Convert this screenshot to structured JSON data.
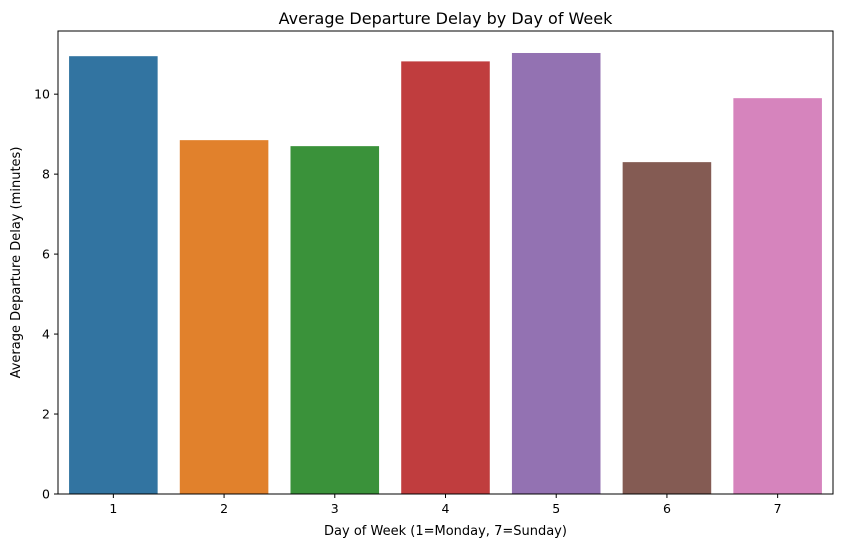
{
  "chart_data": {
    "type": "bar",
    "title": "Average Departure Delay by Day of Week",
    "xlabel": "Day of Week (1=Monday, 7=Sunday)",
    "ylabel": "Average Departure Delay (minutes)",
    "categories": [
      "1",
      "2",
      "3",
      "4",
      "5",
      "6",
      "7"
    ],
    "values": [
      10.95,
      8.85,
      8.7,
      10.82,
      11.03,
      8.3,
      9.9
    ],
    "colors": [
      "#3274a1",
      "#e1812c",
      "#3a923a",
      "#c03d3e",
      "#9372b2",
      "#845b53",
      "#d684bd"
    ],
    "ylim": [
      0,
      11.58
    ],
    "yticks": [
      0,
      2,
      4,
      6,
      8,
      10
    ],
    "grid": false,
    "legend": "none"
  }
}
